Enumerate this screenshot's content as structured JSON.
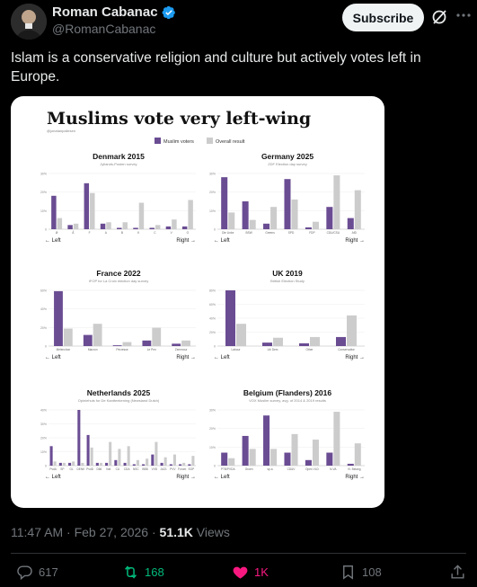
{
  "author": {
    "display_name": "Roman Cabanac",
    "handle": "@RomanCabanac"
  },
  "header": {
    "subscribe_label": "Subscribe"
  },
  "tweet": {
    "text": "Islam is a conservative religion and culture but actively votes left in Europe.",
    "time": "11:47 AM",
    "date": "Feb 27, 2026",
    "separator": "·",
    "views_count": "51.1K",
    "views_label": "Views"
  },
  "actions": {
    "replies": "617",
    "reposts": "168",
    "likes": "1K",
    "bookmarks": "108"
  },
  "colors": {
    "accent_verified": "#1d9bf0",
    "repost_green": "#00ba7c",
    "like_pink": "#f91880",
    "muslim_bar": "#6a4c93",
    "overall_bar": "#cccccc"
  },
  "infographic": {
    "title": "Muslims vote very left-wing",
    "source": "@jonatanpallesen",
    "legend_muslim": "Muslim voters",
    "legend_overall": "Overall result",
    "left_label": "← Left",
    "right_label": "Right →"
  },
  "chart_data": [
    {
      "type": "bar",
      "title": "Denmark 2015",
      "subtitle": "Jyllands-Posten survey",
      "categories": [
        "Ø",
        "Å",
        "F",
        "A",
        "B",
        "K",
        "C",
        "V",
        "O"
      ],
      "series": [
        {
          "name": "Muslim voters",
          "values": [
            24,
            3,
            33,
            4,
            1,
            1,
            1,
            2,
            2
          ]
        },
        {
          "name": "Overall result",
          "values": [
            8,
            4,
            26,
            5,
            5,
            19,
            3,
            7,
            21
          ]
        }
      ],
      "ylim": [
        0,
        40
      ],
      "yticks": [
        "0",
        "10%",
        "20%",
        "30%"
      ]
    },
    {
      "type": "bar",
      "title": "Germany 2025",
      "subtitle": "ZDF Election day survey",
      "categories": [
        "Die Linke",
        "BSW",
        "Greens",
        "SPD",
        "FDP",
        "CDU/CSU",
        "AfD"
      ],
      "series": [
        {
          "name": "Muslim voters",
          "values": [
            28,
            15,
            3,
            27,
            1,
            12,
            6
          ]
        },
        {
          "name": "Overall result",
          "values": [
            9,
            5,
            12,
            16,
            4,
            29,
            21
          ]
        }
      ],
      "ylim": [
        0,
        30
      ],
      "yticks": [
        "0",
        "10%",
        "20%",
        "30%"
      ]
    },
    {
      "type": "bar",
      "title": "France 2022",
      "subtitle": "IFOP for La Croix election day survey",
      "categories": [
        "Mélenchon",
        "Macron",
        "Pécresse",
        "Le Pen",
        "Zemmour"
      ],
      "series": [
        {
          "name": "Muslim voters",
          "values": [
            69,
            14,
            1,
            7,
            3
          ]
        },
        {
          "name": "Overall result",
          "values": [
            22,
            28,
            5,
            23,
            7
          ]
        }
      ],
      "ylim": [
        0,
        70
      ],
      "yticks": [
        "0",
        "20%",
        "40%",
        "60%"
      ]
    },
    {
      "type": "bar",
      "title": "UK 2019",
      "subtitle": "British Election Study",
      "categories": [
        "Labour",
        "Lib Dem",
        "Other",
        "Conservative"
      ],
      "series": [
        {
          "name": "Muslim voters",
          "values": [
            80,
            5,
            4,
            13
          ]
        },
        {
          "name": "Overall result",
          "values": [
            32,
            12,
            13,
            44
          ]
        }
      ],
      "ylim": [
        0,
        80
      ],
      "yticks": [
        "0",
        "20%",
        "40%",
        "60%",
        "80%"
      ]
    },
    {
      "type": "bar",
      "title": "Netherlands 2025",
      "subtitle": "Opiniehuis for De Kantteekening (Newsland Dutch)",
      "categories": [
        "PvdA",
        "SP",
        "GL",
        "DENK",
        "PvdD",
        "D66",
        "Volt",
        "CU",
        "CDA",
        "NSC",
        "BBB",
        "VVD",
        "JA21",
        "PVV",
        "Forum",
        "SGP"
      ],
      "series": [
        {
          "name": "Muslim voters",
          "values": [
            14,
            2,
            2,
            40,
            22,
            2,
            2,
            4,
            2,
            1,
            1,
            8,
            2,
            1,
            1,
            1
          ]
        },
        {
          "name": "Overall result",
          "values": [
            3,
            2,
            3,
            2,
            13,
            2,
            17,
            12,
            14,
            4,
            5,
            17,
            6,
            8,
            2,
            7
          ]
        }
      ],
      "ylim": [
        0,
        40
      ],
      "yticks": [
        "0",
        "10%",
        "20%",
        "30%",
        "40%"
      ]
    },
    {
      "type": "bar",
      "title": "Belgium (Flanders) 2016",
      "subtitle": "VOX Muslim survey, avg. of 2014 & 2019 results",
      "categories": [
        "PTB/PVDA",
        "Groen",
        "sp.a",
        "CD&V",
        "Open VLD",
        "N-VA",
        "Vl. Belang"
      ],
      "series": [
        {
          "name": "Muslim voters",
          "values": [
            7,
            16,
            27,
            7,
            3,
            7,
            1
          ]
        },
        {
          "name": "Overall result",
          "values": [
            4,
            9,
            9,
            17,
            14,
            29,
            12
          ]
        }
      ],
      "ylim": [
        0,
        30
      ],
      "yticks": [
        "0",
        "10%",
        "20%",
        "30%"
      ]
    }
  ]
}
